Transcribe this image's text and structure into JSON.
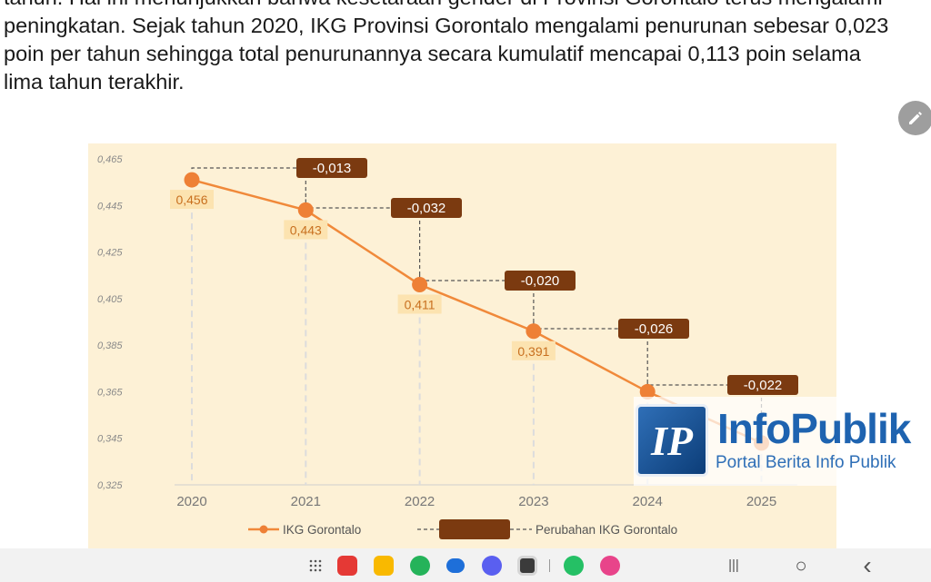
{
  "article": {
    "line1": "tahun. Hal ini menunjukkan bahwa kesetaraan gender di Provinsi Gorontalo terus mengalami",
    "line2": "peningkatan. Sejak tahun 2020, IKG Provinsi Gorontalo mengalami penurunan sebesar 0,023",
    "line3": "poin per tahun sehingga total penurunannya secara kumulatif mencapai 0,113 poin selama",
    "line4": "lima tahun terakhir."
  },
  "chart_data": {
    "type": "line",
    "x": [
      "2020",
      "2021",
      "2022",
      "2023",
      "2024",
      "2025"
    ],
    "series": [
      {
        "name": "IKG Gorontalo",
        "values": [
          0.456,
          0.443,
          0.411,
          0.391,
          0.365,
          0.343
        ],
        "value_labels": [
          "0,456",
          "0,443",
          "0,411",
          "0,391",
          "",
          ""
        ]
      }
    ],
    "changes": {
      "name": "Perubahan IKG Gorontalo",
      "values": [
        -0.013,
        -0.032,
        -0.02,
        -0.026,
        -0.022
      ],
      "labels": [
        "-0,013",
        "-0,032",
        "-0,020",
        "-0,026",
        "-0,022"
      ]
    },
    "ylim": [
      0.325,
      0.465
    ],
    "yticks": [
      "0,465",
      "0,445",
      "0,425",
      "0,405",
      "0,385",
      "0,365",
      "0,345",
      "0,325"
    ],
    "legend_position": "bottom",
    "colors": {
      "line": "#f0893a",
      "point": "#ee8036",
      "value_label_bg": "#fce3b0",
      "value_label_text": "#c8701f",
      "change_bg": "#7b3a10",
      "change_text": "#ffffff",
      "background": "#fdf1d6",
      "grid": "#dcdcdc"
    }
  },
  "watermark": {
    "badge": "IP",
    "title": "InfoPublik",
    "subtitle": "Portal Berita Info Publik"
  },
  "navbar": {
    "apps": [
      "grid-icon",
      "flipboard-icon",
      "notes-icon",
      "phone-icon",
      "messages-icon",
      "browser-icon",
      "camera-icon",
      "whatsapp-icon",
      "gallery-icon"
    ],
    "recents": "|||",
    "home": "○",
    "back": "‹"
  }
}
